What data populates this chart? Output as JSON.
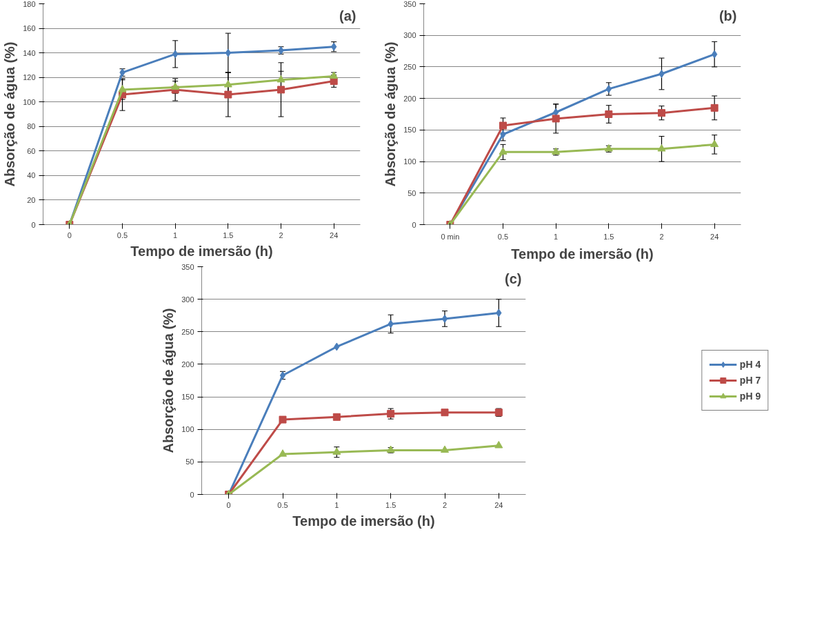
{
  "chart_data": [
    {
      "type": "line",
      "xlabel": "Tempo de imersão (h)",
      "ylabel": "Absorção de água (%)",
      "annotations": [
        "(a)"
      ],
      "categories": [
        "0",
        "0.5",
        "1",
        "1.5",
        "2",
        "24"
      ],
      "ylim": [
        0,
        180
      ],
      "yticks": [
        0,
        20,
        40,
        60,
        80,
        100,
        120,
        140,
        160,
        180
      ],
      "grid": "y",
      "series": [
        {
          "color": "#4a7ebb",
          "marker": "diamond",
          "values": [
            0,
            124,
            139,
            140,
            142,
            145
          ],
          "errors": [
            null,
            3,
            11,
            16,
            3,
            4
          ]
        },
        {
          "color": "#be4b48",
          "marker": "square",
          "values": [
            0,
            106,
            110,
            106,
            110,
            117
          ],
          "errors": [
            null,
            13,
            9,
            18,
            22,
            5
          ]
        },
        {
          "color": "#98b954",
          "marker": "triangle",
          "values": [
            0,
            110,
            112,
            114,
            118,
            121
          ],
          "errors": [
            null,
            8,
            5,
            10,
            7,
            3
          ]
        }
      ]
    },
    {
      "type": "line",
      "xlabel": "Tempo de imersão (h)",
      "ylabel": "Absorção de água (%)",
      "annotations": [
        "(b)"
      ],
      "categories": [
        "0 min",
        "0.5",
        "1",
        "1.5",
        "2",
        "24"
      ],
      "ylim": [
        0,
        350
      ],
      "yticks": [
        0,
        50,
        100,
        150,
        200,
        250,
        300,
        350
      ],
      "grid": "y",
      "series": [
        {
          "color": "#4a7ebb",
          "marker": "diamond",
          "values": [
            0,
            143,
            178,
            215,
            239,
            270
          ],
          "errors": [
            null,
            10,
            13,
            10,
            25,
            20
          ]
        },
        {
          "color": "#be4b48",
          "marker": "square",
          "values": [
            0,
            157,
            168,
            175,
            177,
            185
          ],
          "errors": [
            null,
            12,
            23,
            14,
            11,
            19
          ]
        },
        {
          "color": "#98b954",
          "marker": "triangle",
          "values": [
            0,
            115,
            115,
            120,
            120,
            127
          ],
          "errors": [
            null,
            12,
            5,
            5,
            20,
            15
          ]
        }
      ]
    },
    {
      "type": "line",
      "xlabel": "Tempo de imersão (h)",
      "ylabel": "Absorção de água (%)",
      "annotations": [
        "(c)"
      ],
      "categories": [
        "0",
        "0.5",
        "1",
        "1.5",
        "2",
        "24"
      ],
      "ylim": [
        0,
        350
      ],
      "yticks": [
        0,
        50,
        100,
        150,
        200,
        250,
        300,
        350
      ],
      "grid": "y",
      "legend": "right",
      "series": [
        {
          "name": "pH 4",
          "color": "#4a7ebb",
          "marker": "diamond",
          "values": [
            0,
            183,
            227,
            262,
            270,
            279
          ],
          "errors": [
            null,
            6,
            null,
            14,
            12,
            21
          ]
        },
        {
          "name": "pH 7",
          "color": "#be4b48",
          "marker": "square",
          "values": [
            0,
            115,
            119,
            124,
            126,
            126
          ],
          "errors": [
            null,
            null,
            null,
            8,
            null,
            6
          ]
        },
        {
          "name": "pH 9",
          "color": "#98b954",
          "marker": "triangle",
          "values": [
            0,
            62,
            65,
            68,
            68,
            75
          ],
          "errors": [
            null,
            null,
            8,
            4,
            null,
            null
          ]
        }
      ]
    }
  ]
}
